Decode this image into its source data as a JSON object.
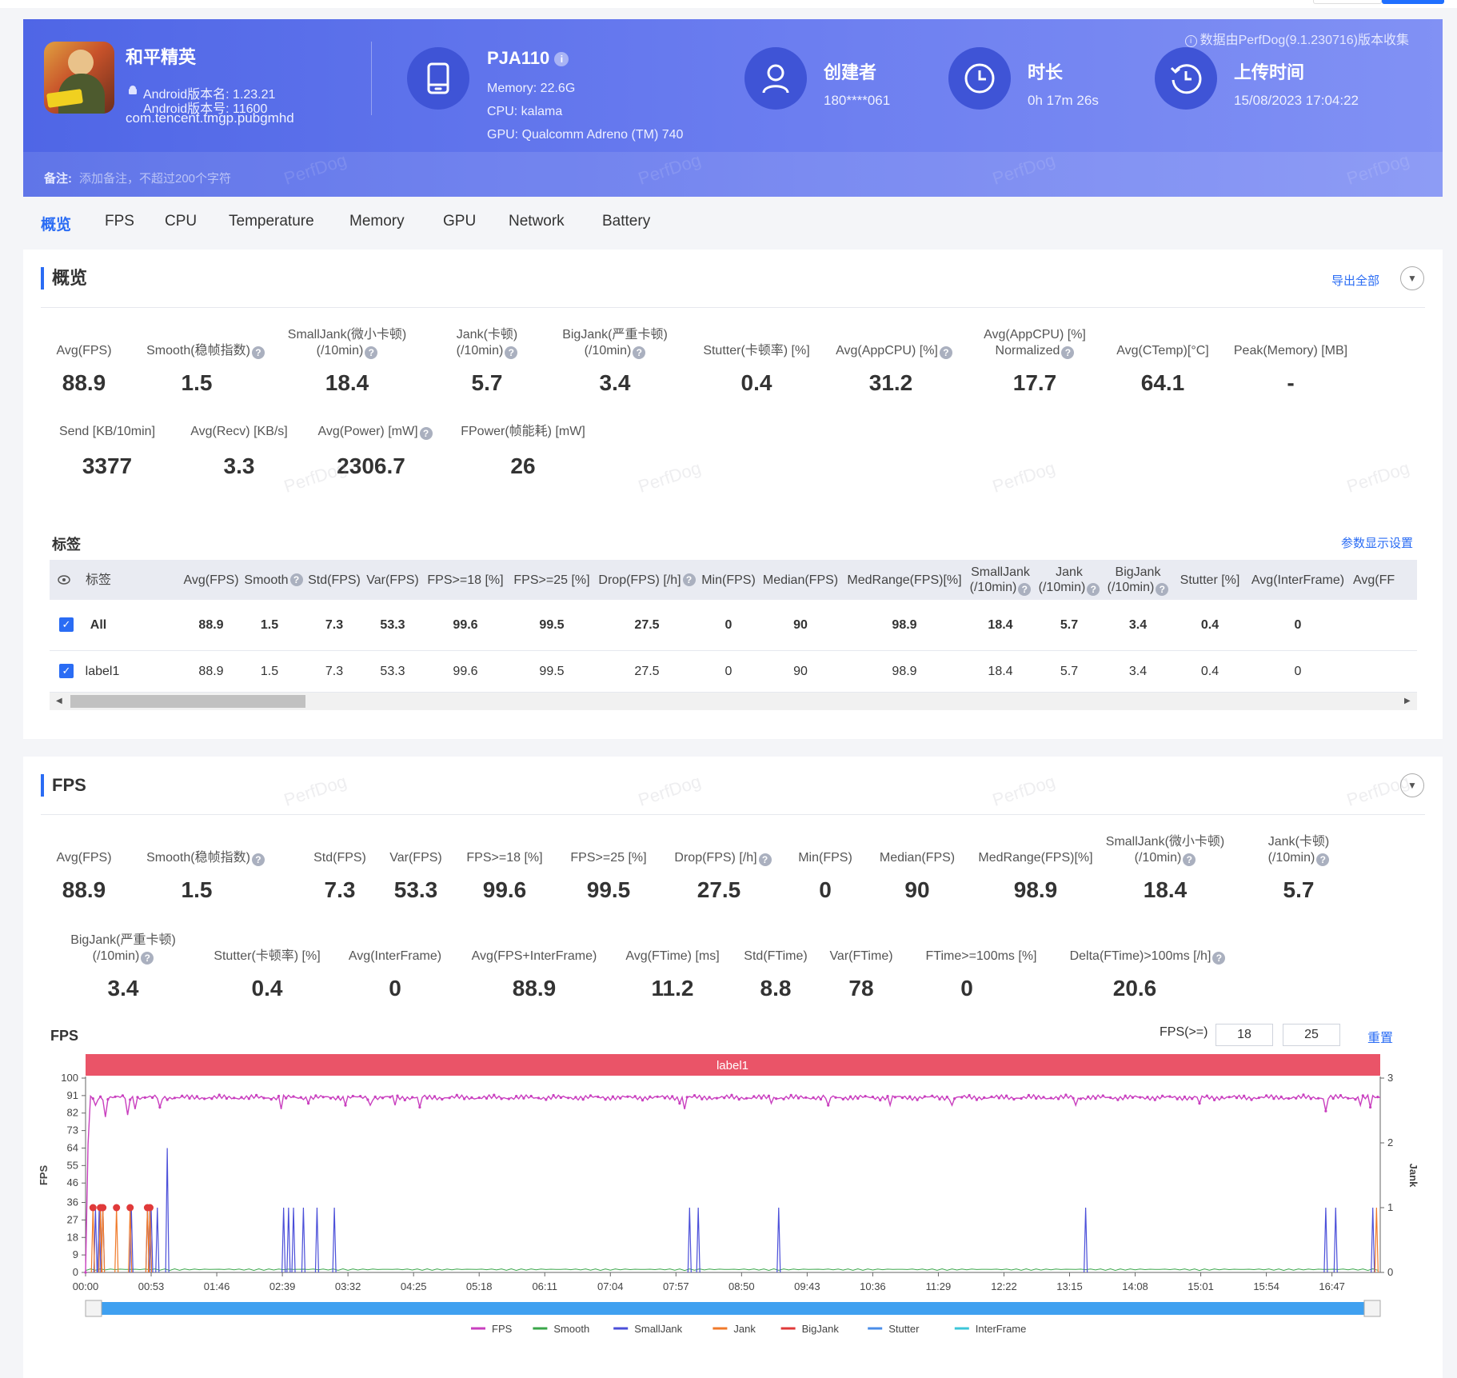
{
  "header": {
    "game": {
      "name": "和平精英",
      "android_version_name": "Android版本名: 1.23.21",
      "android_version_code": "Android版本号: 11600",
      "package": "com.tencent.tmgp.pubgmhd"
    },
    "device": {
      "model": "PJA110",
      "memory": "Memory: 22.6G",
      "cpu": "CPU: kalama",
      "gpu": "GPU: Qualcomm Adreno (TM) 740"
    },
    "creator": {
      "title": "创建者",
      "value": "180****061"
    },
    "duration": {
      "title": "时长",
      "value": "0h 17m 26s"
    },
    "upload": {
      "title": "上传时间",
      "value": "15/08/2023 17:04:22"
    },
    "data_source": "数据由PerfDog(9.1.230716)版本收集",
    "note_label": "备注:",
    "note_placeholder": "添加备注，不超过200个字符",
    "watermark": "PerfDog"
  },
  "tabs": [
    "概览",
    "FPS",
    "CPU",
    "Temperature",
    "Memory",
    "GPU",
    "Network",
    "Battery"
  ],
  "overview": {
    "title": "概览",
    "export_all": "导出全部",
    "metrics_row1": [
      {
        "label": "Avg(FPS)",
        "value": "88.9"
      },
      {
        "label": "Smooth(稳帧指数)",
        "value": "1.5"
      },
      {
        "label": "SmallJank(微小卡顿)",
        "label2": "(/10min)",
        "value": "18.4"
      },
      {
        "label": "Jank(卡顿)",
        "label2": "(/10min)",
        "value": "5.7"
      },
      {
        "label": "BigJank(严重卡顿)",
        "label2": "(/10min)",
        "value": "3.4"
      },
      {
        "label": "Stutter(卡顿率) [%]",
        "value": "0.4"
      },
      {
        "label": "Avg(AppCPU) [%]",
        "value": "31.2"
      },
      {
        "label": "Avg(AppCPU) [%]",
        "label2": "Normalized",
        "value": "17.7"
      },
      {
        "label": "Avg(CTemp)[°C]",
        "value": "64.1"
      },
      {
        "label": "Peak(Memory) [MB]",
        "value": "-"
      }
    ],
    "metrics_row2": [
      {
        "label": "Send [KB/10min]",
        "value": "3377"
      },
      {
        "label": "Avg(Recv) [KB/s]",
        "value": "3.3"
      },
      {
        "label": "Avg(Power) [mW]",
        "value": "2306.7"
      },
      {
        "label": "FPower(帧能耗) [mW]",
        "value": "26"
      }
    ],
    "labels_title": "标签",
    "param_settings": "参数显示设置",
    "table": {
      "headers": [
        "标签",
        "Avg(FPS)",
        "Smooth",
        "Std(FPS)",
        "Var(FPS)",
        "FPS>=18 [%]",
        "FPS>=25 [%]",
        "Drop(FPS) [/h]",
        "Min(FPS)",
        "Median(FPS)",
        "MedRange(FPS)[%]",
        "SmallJank",
        "Jank",
        "BigJank",
        "Stutter [%]",
        "Avg(InterFrame)",
        "Avg(FF"
      ],
      "header_sub": "(/10min)",
      "rows": [
        {
          "label": "All",
          "cells": [
            "88.9",
            "1.5",
            "7.3",
            "53.3",
            "99.6",
            "99.5",
            "27.5",
            "0",
            "90",
            "98.9",
            "18.4",
            "5.7",
            "3.4",
            "0.4",
            "0"
          ]
        },
        {
          "label": "label1",
          "cells": [
            "88.9",
            "1.5",
            "7.3",
            "53.3",
            "99.6",
            "99.5",
            "27.5",
            "0",
            "90",
            "98.9",
            "18.4",
            "5.7",
            "3.4",
            "0.4",
            "0"
          ]
        }
      ]
    }
  },
  "fps_section": {
    "title": "FPS",
    "metrics_row1": [
      {
        "label": "Avg(FPS)",
        "value": "88.9"
      },
      {
        "label": "Smooth(稳帧指数)",
        "value": "1.5"
      },
      {
        "label": "Std(FPS)",
        "value": "7.3"
      },
      {
        "label": "Var(FPS)",
        "value": "53.3"
      },
      {
        "label": "FPS>=18 [%]",
        "value": "99.6"
      },
      {
        "label": "FPS>=25 [%]",
        "value": "99.5"
      },
      {
        "label": "Drop(FPS) [/h]",
        "value": "27.5"
      },
      {
        "label": "Min(FPS)",
        "value": "0"
      },
      {
        "label": "Median(FPS)",
        "value": "90"
      },
      {
        "label": "MedRange(FPS)[%]",
        "value": "98.9"
      },
      {
        "label": "SmallJank(微小卡顿)",
        "label2": "(/10min)",
        "value": "18.4"
      },
      {
        "label": "Jank(卡顿)",
        "label2": "(/10min)",
        "value": "5.7"
      }
    ],
    "metrics_row2": [
      {
        "label": "BigJank(严重卡顿)",
        "label2": "(/10min)",
        "value": "3.4"
      },
      {
        "label": "Stutter(卡顿率) [%]",
        "value": "0.4"
      },
      {
        "label": "Avg(InterFrame)",
        "value": "0"
      },
      {
        "label": "Avg(FPS+InterFrame)",
        "value": "88.9"
      },
      {
        "label": "Avg(FTime) [ms]",
        "value": "11.2"
      },
      {
        "label": "Std(FTime)",
        "value": "8.8"
      },
      {
        "label": "Var(FTime)",
        "value": "78"
      },
      {
        "label": "FTime>=100ms [%]",
        "value": "0"
      },
      {
        "label": "Delta(FTime)>100ms [/h]",
        "value": "20.6"
      }
    ],
    "chart_title": "FPS",
    "threshold_label": "FPS(>=)",
    "threshold1": "18",
    "threshold2": "25",
    "reset": "重置"
  },
  "chart_data": {
    "type": "line",
    "title": "FPS",
    "label_band": "label1",
    "ylabel": "FPS",
    "y2label": "Jank",
    "ylim": [
      0,
      100
    ],
    "y2lim": [
      0,
      3
    ],
    "yticks": [
      "0",
      "9",
      "18",
      "27",
      "36",
      "46",
      "55",
      "64",
      "73",
      "82",
      "91",
      "100"
    ],
    "y2ticks": [
      "0",
      "1",
      "2",
      "3"
    ],
    "xticks": [
      "00:00",
      "00:53",
      "01:46",
      "02:39",
      "03:32",
      "04:25",
      "05:18",
      "06:11",
      "07:04",
      "07:57",
      "08:50",
      "09:43",
      "10:36",
      "11:29",
      "12:22",
      "13:15",
      "14:08",
      "15:01",
      "15:54",
      "16:47"
    ],
    "duration_s": 1046,
    "legend": [
      "FPS",
      "Smooth",
      "SmallJank",
      "Jank",
      "BigJank",
      "Stutter",
      "InterFrame"
    ],
    "colors": {
      "FPS": "#c93fbf",
      "Smooth": "#3aa64a",
      "SmallJank": "#4b4fd9",
      "Jank": "#f07a2a",
      "BigJank": "#e03a3a",
      "Stutter": "#4a8de8",
      "InterFrame": "#3cc6d8",
      "band": "#ea5468"
    },
    "series": [
      {
        "name": "FPS",
        "baseline": 90,
        "dips": [
          [
            3,
            66
          ],
          [
            8,
            86
          ],
          [
            16,
            80
          ],
          [
            35,
            81
          ],
          [
            40,
            84
          ],
          [
            60,
            85
          ],
          [
            158,
            84
          ],
          [
            180,
            87
          ],
          [
            210,
            86
          ],
          [
            230,
            86
          ],
          [
            250,
            86
          ],
          [
            270,
            85
          ],
          [
            480,
            87
          ],
          [
            485,
            84
          ],
          [
            555,
            87
          ],
          [
            600,
            86
          ],
          [
            650,
            86
          ],
          [
            700,
            86
          ],
          [
            800,
            86
          ],
          [
            900,
            87
          ],
          [
            1003,
            83
          ],
          [
            1030,
            86
          ],
          [
            1038,
            85
          ]
        ]
      },
      {
        "name": "SmallJank",
        "events_s": [
          8,
          11,
          12,
          14,
          37,
          50,
          52,
          53,
          58,
          160,
          164,
          168,
          176,
          187,
          201,
          488,
          495,
          560,
          808,
          1002,
          1010,
          1040
        ]
      },
      {
        "name": "Jank",
        "events_s": [
          6,
          12,
          14,
          25,
          36,
          50,
          52,
          1043
        ]
      },
      {
        "name": "BigJank",
        "events_s": [
          6,
          12,
          14,
          25,
          36,
          50,
          52
        ]
      },
      {
        "name": "Stutter",
        "events_s": []
      },
      {
        "name": "InterFrame",
        "events_s": []
      }
    ]
  }
}
